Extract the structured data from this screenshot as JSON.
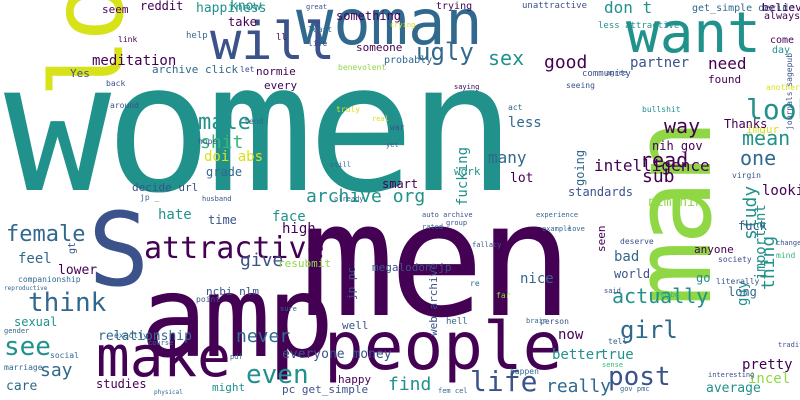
{
  "palette": {
    "purple": "#440154",
    "indigo": "#3b528b",
    "blue": "#31688e",
    "teal": "#21918c",
    "sea": "#1f9e89",
    "green": "#35b779",
    "lime": "#8fd744",
    "yellow": "#d8e219"
  },
  "words": [
    "women",
    "men",
    "amp",
    "man",
    "look",
    "woman",
    "people",
    "make",
    "want",
    "will",
    "S",
    "attractive",
    "life",
    "even",
    "post",
    "think",
    "see",
    "girl",
    "look",
    "ugly",
    "sex",
    "good",
    "need",
    "female",
    "male",
    "shit",
    "mean",
    "one",
    "way",
    "read",
    "sub",
    "many",
    "fucking",
    "intelligence",
    "study",
    "thing",
    "archive org",
    "hate",
    "give",
    "never",
    "say",
    "feel",
    "actually",
    "guy",
    "nice",
    "really",
    "find",
    "true",
    "better",
    "incel",
    "pretty",
    "don t",
    "happiness",
    "know",
    "something",
    "reddit",
    "seem",
    "take",
    "less",
    "lot",
    "work",
    "smart",
    "high",
    "face",
    "time",
    "sexual",
    "relationship",
    "care",
    "studies",
    "everyone money",
    "might",
    "happy",
    "looking",
    "fuck",
    "average",
    "important",
    "long",
    "now",
    "well",
    "web archive",
    "megalodon jp",
    "jp pc",
    "ncbi nlm",
    "nlm nih",
    "nih gov",
    "doi abs",
    "imgur",
    "Thanks",
    "Yes",
    "archive click",
    "every",
    "normie",
    "decide url",
    "grade",
    "lower",
    "gt",
    "pc get_simple",
    "resubmit",
    "anyone",
    "seen",
    "bad",
    "go",
    "world",
    "going",
    "partner",
    "someone",
    "probably",
    "found",
    "get_simple decide",
    "believe",
    "come",
    "day",
    "always",
    "trying",
    "unattractive",
    "less attractive",
    "great",
    "crying",
    "meditation",
    "ll",
    "link",
    "help",
    "back",
    "around",
    "act",
    "bullshit",
    "hope",
    "tend",
    "war",
    "truly",
    "least",
    "live",
    "seeing",
    "community",
    "agree",
    "another",
    "saying",
    "benevolent",
    "virgin",
    "journals sagepub",
    "standards",
    "jp _",
    "husband",
    "course",
    "point",
    "auto archive",
    "rated",
    "group",
    "fallacy",
    "experience",
    "example",
    "love",
    "deserve",
    "society",
    "literally",
    "change",
    "mind",
    "Maybe",
    "said",
    "far",
    "tell",
    "sense",
    "traditional",
    "interesting",
    "gov pmc",
    "fem cel",
    "happen",
    "pdf",
    "physical",
    "marriage",
    "social",
    "exactly",
    "gender",
    "reproductive",
    "companionship",
    "re",
    "person",
    "hell",
    "brain",
    "sure",
    "still",
    "already",
    "real",
    "yet",
    "let",
    "v"
  ]
}
